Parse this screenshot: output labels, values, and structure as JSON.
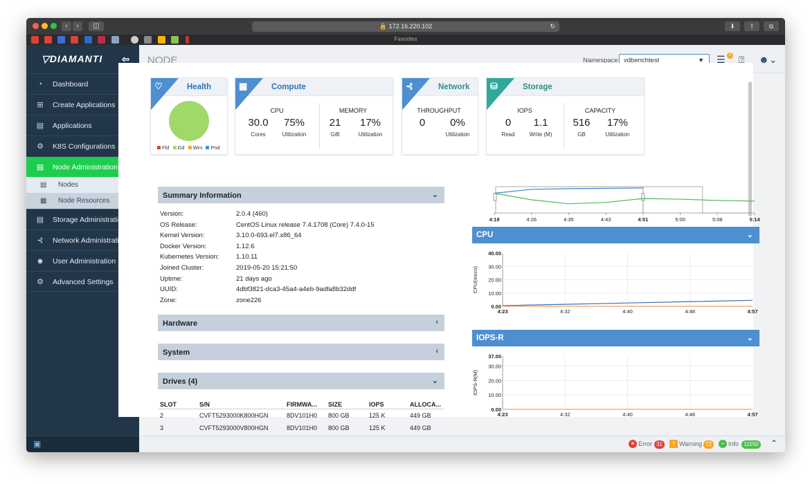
{
  "browser": {
    "url": "172.16.220.102",
    "favorites_label": "Favorites"
  },
  "brand": {
    "name": "DIAMANTI"
  },
  "sidebar": {
    "items": [
      {
        "label": "Dashboard",
        "icon": "dashboard-icon"
      },
      {
        "label": "Create Applications",
        "icon": "plus-square-icon"
      },
      {
        "label": "Applications",
        "icon": "list-icon"
      },
      {
        "label": "K8S Configurations",
        "icon": "gear-icon"
      },
      {
        "label": "Node Administration",
        "icon": "server-icon",
        "active": true
      },
      {
        "label": "Nodes",
        "icon": "node-icon",
        "sub": true,
        "selected": true
      },
      {
        "label": "Node Resources",
        "icon": "resources-icon",
        "sub": true
      },
      {
        "label": "Storage Administration",
        "icon": "storage-icon"
      },
      {
        "label": "Network Administration",
        "icon": "network-icon"
      },
      {
        "label": "User Administration",
        "icon": "users-icon"
      },
      {
        "label": "Advanced Settings",
        "icon": "settings-icon"
      }
    ]
  },
  "header": {
    "title": "NODE",
    "namespace_label": "Namespace",
    "namespace_value": "vdbenchtest",
    "notification_count": "0"
  },
  "cards": {
    "health": {
      "title": "Health",
      "legend": [
        "Fld",
        "Gd",
        "Wrn",
        "Pnd"
      ],
      "color": "#a0d86a"
    },
    "compute": {
      "title": "Compute",
      "cpu": {
        "label": "CPU",
        "cores": "30.0",
        "cores_label": "Cores",
        "util": "75%",
        "util_label": "Utilization"
      },
      "memory": {
        "label": "MEMORY",
        "gib": "21",
        "gib_label": "GiB",
        "util": "17%",
        "util_label": "Utilization"
      }
    },
    "network": {
      "title": "Network",
      "throughput": {
        "label": "THROUGHPUT",
        "value": "0",
        "util": "0%",
        "util_label": "Utilization"
      }
    },
    "storage": {
      "title": "Storage",
      "iops": {
        "label": "IOPS",
        "read": "0",
        "read_label": "Read",
        "write": "1.1",
        "write_label": "Write (M)"
      },
      "capacity": {
        "label": "CAPACITY",
        "gb": "516",
        "gb_label": "GB",
        "util": "17%",
        "util_label": "Utilization"
      }
    }
  },
  "summary": {
    "title": "Summary Information",
    "rows": [
      {
        "key": "Version:",
        "value": "2.0.4 (460)"
      },
      {
        "key": "OS Release:",
        "value": "CentOS Linux release 7.4.1708 (Core) 7.4.0-15"
      },
      {
        "key": "Kernel Version:",
        "value": "3.10.0-693.el7.x86_64"
      },
      {
        "key": "Docker Version:",
        "value": "1.12.6"
      },
      {
        "key": "Kubernetes Version:",
        "value": "1.10.11"
      },
      {
        "key": "Joined Cluster:",
        "value": "2019-05-20 15:21:50"
      },
      {
        "key": "Uptime:",
        "value": "21 days ago"
      },
      {
        "key": "UUID:",
        "value": "4dbf3821-dca3-45a4-a4eb-9adfa8b32ddf"
      },
      {
        "key": "Zone:",
        "value": "zone226"
      }
    ]
  },
  "panels": {
    "hardware": "Hardware",
    "system": "System",
    "drives": "Drives (4)"
  },
  "drives": {
    "columns": [
      "SLOT",
      "S/N",
      "FIRMWA...",
      "SIZE",
      "IOPS",
      "ALLOCA..."
    ],
    "rows": [
      [
        "2",
        "CVFT5293000K800HGN",
        "8DV101H0",
        "800 GB",
        "125 K",
        "449 GB"
      ],
      [
        "3",
        "CVFT5293000V800HGN",
        "8DV101H0",
        "800 GB",
        "125 K",
        "449 GB"
      ]
    ]
  },
  "chart_data": [
    {
      "type": "line",
      "x": [
        "4:18",
        "4:26",
        "4:35",
        "4:43",
        "4:51",
        "5:00",
        "5:08",
        "5:14"
      ],
      "series": [
        {
          "values": [
            30,
            36,
            37,
            37.5,
            38,
            null,
            null,
            null
          ],
          "color": "#3b86d6"
        },
        {
          "values": [
            30,
            20,
            14,
            16,
            22,
            21,
            19,
            18
          ],
          "color": "#4cbb4c"
        }
      ]
    },
    {
      "type": "line",
      "title": "CPU",
      "ylabel": "CPU(micro)",
      "ylim": [
        0,
        40
      ],
      "yticks": [
        "40.00",
        "30.00",
        "20.00",
        "10.00",
        "0.00"
      ],
      "x": [
        "4:23",
        "4:32",
        "4:40",
        "4:48",
        "4:57"
      ],
      "series": [
        {
          "values": [
            0.5,
            1.5,
            2.5,
            3.5,
            4.5
          ],
          "color": "#3b6fb0"
        },
        {
          "values": [
            0,
            0,
            0,
            0,
            0
          ],
          "color": "#f2a06b"
        }
      ]
    },
    {
      "type": "line",
      "title": "IOPS-R",
      "ylabel": "IOPS-R(M)",
      "ylim": [
        0,
        37
      ],
      "yticks": [
        "37.00",
        "30.00",
        "20.00",
        "10.00",
        "0.00"
      ],
      "x": [
        "4:23",
        "4:32",
        "4:40",
        "4:48",
        "4:57"
      ],
      "series": [
        {
          "values": [
            0,
            0,
            0,
            0,
            0
          ],
          "color": "#f2a06b"
        }
      ]
    }
  ],
  "status": {
    "error_label": "Error",
    "error_count": "31",
    "warning_label": "Warning",
    "warning_count": "72",
    "info_label": "Info",
    "info_count": "11550"
  }
}
